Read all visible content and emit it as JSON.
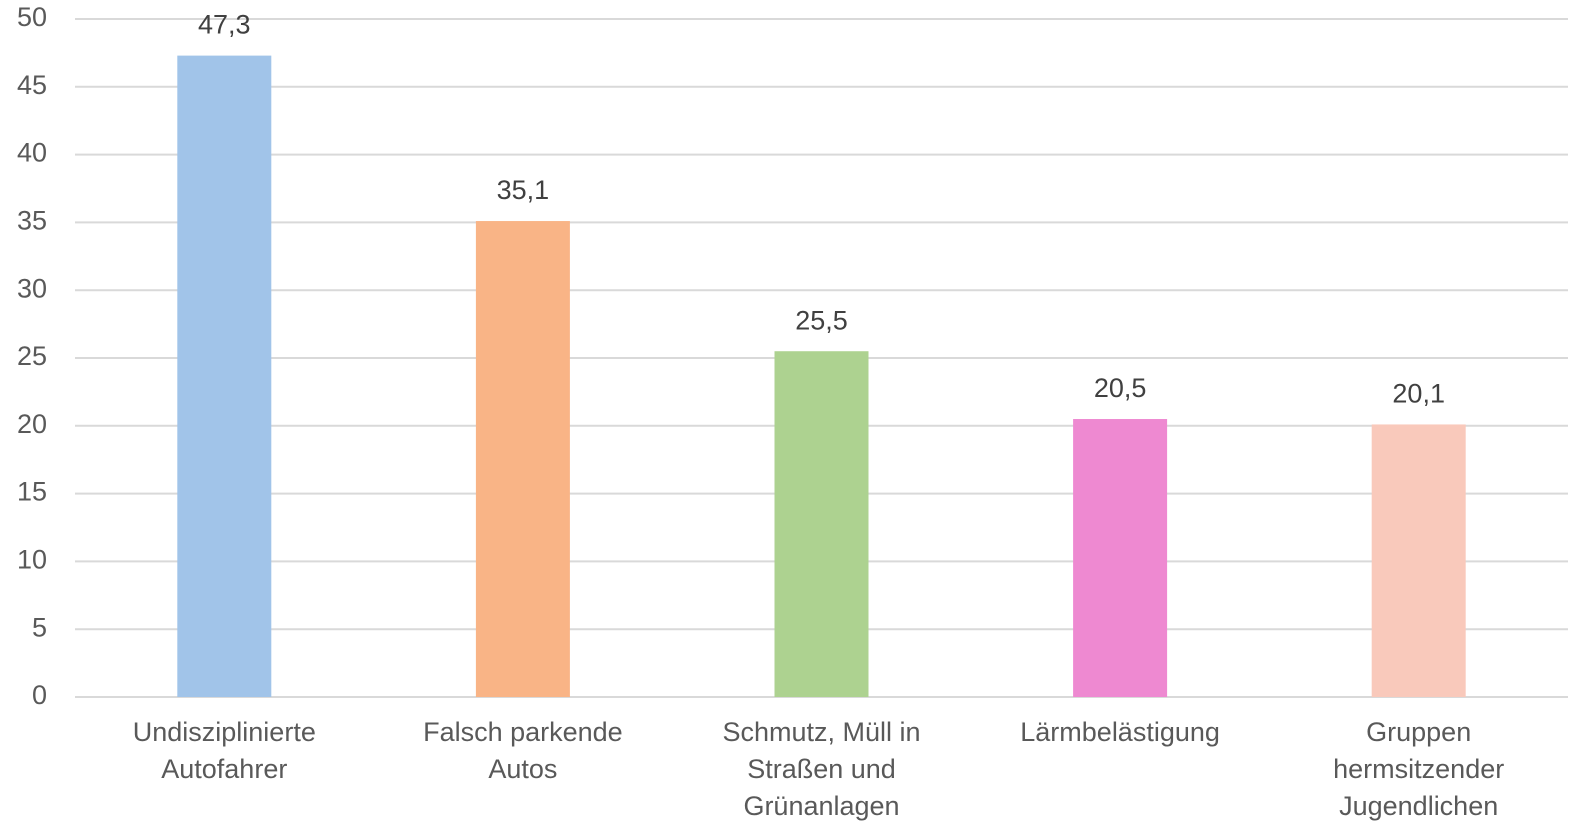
{
  "chart_data": {
    "type": "bar",
    "categories": [
      "Undisziplinierte Autofahrer",
      "Falsch parkende Autos",
      "Schmutz, Müll in Straßen und Grünanlagen",
      "Lärmbelästigung",
      "Gruppen hermsitzender Jugendlichen"
    ],
    "values": [
      47.3,
      35.1,
      25.5,
      20.5,
      20.1
    ],
    "value_labels": [
      "47,3",
      "35,1",
      "25,5",
      "20,5",
      "20,1"
    ],
    "colors": [
      "#a1c4e9",
      "#f9b486",
      "#add290",
      "#ee89d1",
      "#f9c9bb"
    ],
    "ylim": [
      0,
      50
    ],
    "yticks": [
      0,
      5,
      10,
      15,
      20,
      25,
      30,
      35,
      40,
      45,
      50
    ],
    "grid": true
  }
}
